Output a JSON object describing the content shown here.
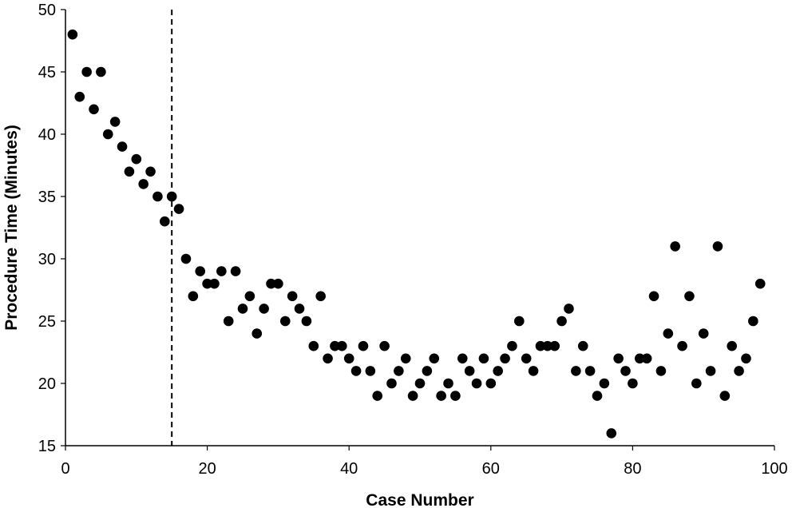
{
  "chart_data": {
    "type": "scatter",
    "title": "",
    "xlabel": "Case Number",
    "ylabel": "Procedure Time (Minutes)",
    "xlim": [
      0,
      100
    ],
    "ylim": [
      15,
      50
    ],
    "xticks": [
      0,
      20,
      40,
      60,
      80,
      100
    ],
    "yticks": [
      15,
      20,
      25,
      30,
      35,
      40,
      45,
      50
    ],
    "grid": false,
    "legend": "none",
    "marker_color": "#000000",
    "reference_line": {
      "orientation": "vertical",
      "x": 15,
      "style": "dashed"
    },
    "series": [
      {
        "x": [
          1,
          2,
          3,
          4,
          5,
          6,
          7,
          8,
          9,
          10,
          11,
          12,
          13,
          14,
          15,
          16,
          17,
          18,
          19,
          20,
          21,
          22,
          23,
          24,
          25,
          26,
          27,
          28,
          29,
          30,
          31,
          32,
          33,
          34,
          35,
          36,
          37,
          38,
          39,
          40,
          41,
          42,
          43,
          44,
          45,
          46,
          47,
          48,
          49,
          50,
          51,
          52,
          53,
          54,
          55,
          56,
          57,
          58,
          59,
          60,
          61,
          62,
          63,
          64,
          65,
          66,
          67,
          68,
          69,
          70,
          71,
          72,
          73,
          74,
          75,
          76,
          77,
          78,
          79,
          80,
          81,
          82,
          83,
          84,
          85,
          86,
          87,
          88,
          89,
          90,
          91,
          92,
          93,
          94,
          95,
          96,
          97,
          98
        ],
        "y": [
          48,
          43,
          45,
          42,
          45,
          40,
          41,
          39,
          37,
          38,
          36,
          37,
          35,
          33,
          35,
          34,
          30,
          27,
          29,
          28,
          28,
          29,
          25,
          29,
          26,
          27,
          24,
          26,
          28,
          28,
          25,
          27,
          26,
          25,
          23,
          27,
          22,
          23,
          23,
          22,
          21,
          23,
          21,
          19,
          23,
          20,
          21,
          22,
          19,
          20,
          21,
          22,
          19,
          20,
          19,
          22,
          21,
          20,
          22,
          20,
          21,
          22,
          23,
          25,
          22,
          21,
          23,
          23,
          23,
          25,
          26,
          21,
          23,
          21,
          19,
          20,
          16,
          22,
          21,
          20,
          22,
          22,
          27,
          21,
          24,
          31,
          23,
          27,
          20,
          24,
          21,
          31,
          19,
          23,
          21,
          22,
          25,
          28
        ]
      }
    ]
  }
}
